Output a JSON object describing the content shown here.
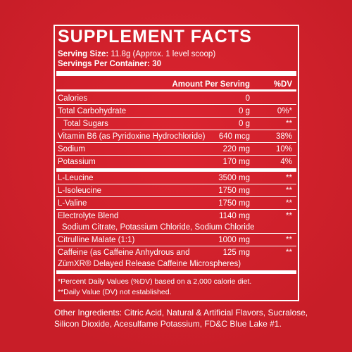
{
  "label": {
    "title": "SUPPLEMENT FACTS",
    "serving_size": {
      "label": "Serving Size:",
      "value": "11.8g (Approx. 1 level scoop)"
    },
    "servings_per_container": {
      "label": "Servings Per Container:",
      "value": "30"
    },
    "header": {
      "amount": "Amount Per Serving",
      "dv": "%DV"
    },
    "groups": [
      [
        {
          "name": "Calories",
          "amount": "0",
          "dv": ""
        },
        {
          "name": "Total Carbohydrate",
          "amount": "0 g",
          "dv": "0%*"
        },
        {
          "name": "Total Sugars",
          "amount": "0 g",
          "dv": "**",
          "indent": true
        },
        {
          "name": "Vitamin B6 (as Pyridoxine Hydrochloride)",
          "amount": "640 mcg",
          "dv": "38%"
        },
        {
          "name": "Sodium",
          "amount": "220 mg",
          "dv": "10%"
        },
        {
          "name": "Potassium",
          "amount": "170 mg",
          "dv": "4%"
        }
      ],
      [
        {
          "name": "L-Leucine",
          "amount": "3500 mg",
          "dv": "**"
        },
        {
          "name": "L-Isoleucine",
          "amount": "1750 mg",
          "dv": "**"
        },
        {
          "name": "L-Valine",
          "amount": "1750 mg",
          "dv": "**"
        },
        {
          "name": "Electrolyte Blend",
          "amount": "1140 mg",
          "dv": "**",
          "detail": "Sodium Citrate, Potassium Chloride, Sodium Chloride"
        },
        {
          "name": "Citrulline Malate (1:1)",
          "amount": "1000 mg",
          "dv": "**"
        },
        {
          "name": "Caffeine (as Caffeine Anhydrous and",
          "amount": "125 mg",
          "dv": "**",
          "detail": "ZümXR® Delayed Release Caffeine Microspheres)"
        }
      ]
    ],
    "footnotes": [
      "*Percent Daily Values (%DV) based on a 2,000 calorie diet.",
      "**Daily Value (DV) not established."
    ],
    "other_ingredients": [
      "Other Ingredients: Citric Acid, Natural & Artificial Flavors, Sucralose,",
      "Silicon Dioxide, Acesulfame Potassium, FD&C Blue Lake #1."
    ]
  }
}
